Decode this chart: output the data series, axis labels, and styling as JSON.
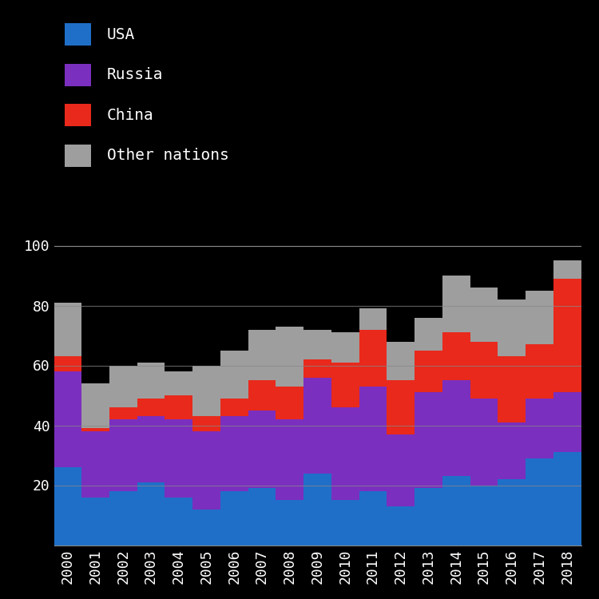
{
  "years": [
    2000,
    2001,
    2002,
    2003,
    2004,
    2005,
    2006,
    2007,
    2008,
    2009,
    2010,
    2011,
    2012,
    2013,
    2014,
    2015,
    2016,
    2017,
    2018
  ],
  "usa": [
    26,
    16,
    18,
    21,
    16,
    12,
    18,
    19,
    15,
    24,
    15,
    18,
    13,
    19,
    23,
    20,
    22,
    29,
    31
  ],
  "russia": [
    32,
    22,
    24,
    22,
    26,
    26,
    25,
    26,
    27,
    32,
    31,
    35,
    24,
    32,
    32,
    29,
    19,
    20,
    20
  ],
  "china": [
    5,
    1,
    4,
    6,
    8,
    5,
    6,
    10,
    11,
    6,
    15,
    19,
    18,
    14,
    16,
    19,
    22,
    18,
    38
  ],
  "other": [
    18,
    15,
    14,
    12,
    8,
    17,
    16,
    17,
    20,
    10,
    10,
    7,
    13,
    11,
    19,
    18,
    19,
    18,
    6
  ],
  "usa_color": "#1f6fc8",
  "russia_color": "#7b2fbe",
  "china_color": "#e8291c",
  "other_color": "#9e9e9e",
  "bg_color": "#000000",
  "text_color": "#ffffff",
  "grid_color": "#888888",
  "yticks": [
    20,
    40,
    60,
    80,
    100
  ],
  "ylim": [
    0,
    110
  ],
  "label_fontsize": 14,
  "tick_fontsize": 13
}
